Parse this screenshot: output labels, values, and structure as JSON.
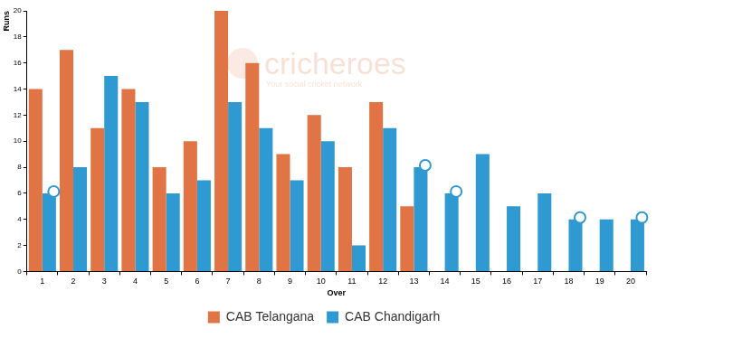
{
  "chart_data": {
    "type": "bar",
    "x_label": "Over",
    "y_label": "Runs",
    "annotations": [
      "cricheroes",
      "Your social cricket network"
    ],
    "categories": [
      "1",
      "2",
      "3",
      "4",
      "5",
      "6",
      "7",
      "8",
      "9",
      "10",
      "11",
      "12",
      "13",
      "14",
      "15",
      "16",
      "17",
      "18",
      "19",
      "20"
    ],
    "series": [
      {
        "name": "CAB Telangana",
        "color": "#e07444",
        "values": [
          14,
          17,
          11,
          14,
          8,
          10,
          20,
          16,
          9,
          12,
          8,
          13,
          5,
          null,
          null,
          null,
          null,
          null,
          null,
          null
        ]
      },
      {
        "name": "CAB Chandigarh",
        "color": "#2f9ad2",
        "values": [
          6,
          8,
          15,
          13,
          6,
          7,
          13,
          11,
          7,
          10,
          2,
          11,
          8,
          6,
          9,
          5,
          6,
          4,
          4,
          4
        ],
        "marker": "circle",
        "wicket_overs": [
          "1",
          "13",
          "14",
          "18",
          "20"
        ]
      }
    ],
    "ylim": [
      0,
      20
    ],
    "yticks": [
      0,
      2,
      4,
      6,
      8,
      10,
      12,
      14,
      16,
      18,
      20
    ],
    "grid": false,
    "legend": "bottom"
  }
}
